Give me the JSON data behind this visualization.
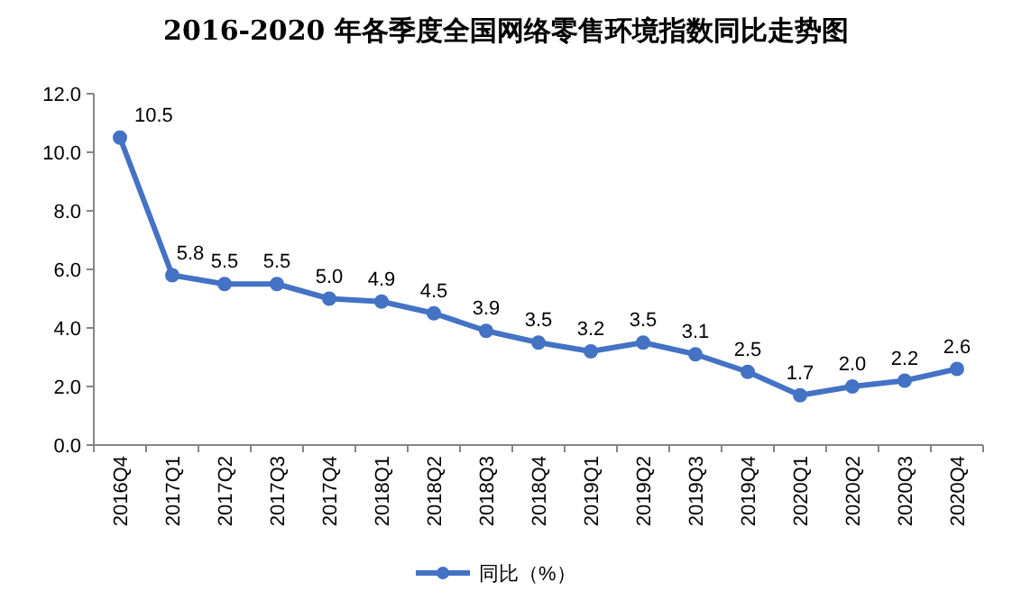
{
  "chart_data": {
    "type": "line",
    "title": "2016-2020 年各季度全国网络零售环境指数同比走势图",
    "categories": [
      "2016Q4",
      "2017Q1",
      "2017Q2",
      "2017Q3",
      "2017Q4",
      "2018Q1",
      "2018Q2",
      "2018Q3",
      "2018Q4",
      "2019Q1",
      "2019Q2",
      "2019Q3",
      "2019Q4",
      "2020Q1",
      "2020Q2",
      "2020Q3",
      "2020Q4"
    ],
    "series": [
      {
        "name": "同比（%）",
        "color": "#4472c4",
        "values": [
          10.5,
          5.8,
          5.5,
          5.5,
          5.0,
          4.9,
          4.5,
          3.9,
          3.5,
          3.2,
          3.5,
          3.1,
          2.5,
          1.7,
          2.0,
          2.2,
          2.6
        ],
        "value_labels": [
          "10.5",
          "5.8",
          "5.5",
          "5.5",
          "5.0",
          "4.9",
          "4.5",
          "3.9",
          "3.5",
          "3.2",
          "3.5",
          "3.1",
          "2.5",
          "1.7",
          "2.0",
          "2.2",
          "2.6"
        ]
      }
    ],
    "ylim": [
      0,
      12
    ],
    "yticks": [
      {
        "value": 0,
        "label": "0.0"
      },
      {
        "value": 2,
        "label": "2.0"
      },
      {
        "value": 4,
        "label": "4.0"
      },
      {
        "value": 6,
        "label": "6.0"
      },
      {
        "value": 8,
        "label": "8.0"
      },
      {
        "value": 10,
        "label": "10.0"
      },
      {
        "value": 12,
        "label": "12.0"
      }
    ],
    "grid": false,
    "legend": "bottom",
    "marker": "circle",
    "line_style": "solid"
  }
}
